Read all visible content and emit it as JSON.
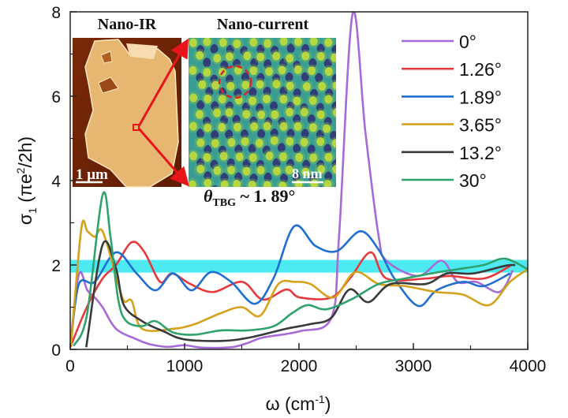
{
  "chart_data": {
    "type": "line",
    "xlabel": {
      "main": "ω (cm",
      "sup": "-1",
      "end": ")"
    },
    "ylabel": {
      "main": "σ",
      "sub": "1",
      "mid": " (πe",
      "sup": "2",
      "end": "/2h)"
    },
    "xlim": [
      0,
      4000
    ],
    "ylim": [
      0,
      8
    ],
    "xticks": [
      0,
      1000,
      2000,
      3000,
      4000
    ],
    "yticks": [
      0,
      2,
      4,
      6,
      8
    ],
    "grid": false,
    "legend_placement": "top-right",
    "reference_band": {
      "y_range": [
        1.82,
        2.12
      ],
      "color": "#2ee6ee"
    },
    "series": [
      {
        "name": "0°",
        "color": "#a66bd6",
        "points": [
          [
            0,
            0.1
          ],
          [
            76,
            1.78
          ],
          [
            150,
            1.4
          ],
          [
            214,
            1.23
          ],
          [
            283,
            1.0
          ],
          [
            400,
            0.49
          ],
          [
            580,
            0.24
          ],
          [
            700,
            0.12
          ],
          [
            855,
            0.06
          ],
          [
            1000,
            0.1
          ],
          [
            1150,
            0.04
          ],
          [
            1407,
            0.05
          ],
          [
            1550,
            0.15
          ],
          [
            1683,
            0.28
          ],
          [
            2007,
            0.43
          ],
          [
            2283,
            0.75
          ],
          [
            2350,
            2.67
          ],
          [
            2469,
            7.96
          ],
          [
            2580,
            5.16
          ],
          [
            2697,
            2.67
          ],
          [
            2766,
            2.1
          ],
          [
            3041,
            1.74
          ],
          [
            3248,
            2.1
          ],
          [
            3386,
            1.6
          ],
          [
            3550,
            1.6
          ],
          [
            3752,
            1.36
          ],
          [
            3869,
            1.87
          ]
        ]
      },
      {
        "name": "1.26°",
        "color": "#e5393d",
        "points": [
          [
            0,
            0.05
          ],
          [
            145,
            1.0
          ],
          [
            283,
            1.68
          ],
          [
            400,
            2.0
          ],
          [
            538,
            2.54
          ],
          [
            650,
            2.3
          ],
          [
            786,
            1.6
          ],
          [
            890,
            1.8
          ],
          [
            1050,
            1.55
          ],
          [
            1248,
            1.36
          ],
          [
            1503,
            1.6
          ],
          [
            1683,
            1.18
          ],
          [
            1890,
            1.42
          ],
          [
            2007,
            1.23
          ],
          [
            2283,
            1.23
          ],
          [
            2450,
            1.7
          ],
          [
            2628,
            2.3
          ],
          [
            2766,
            1.68
          ],
          [
            3110,
            1.68
          ],
          [
            3317,
            1.74
          ],
          [
            3615,
            1.68
          ],
          [
            3848,
            1.98
          ]
        ]
      },
      {
        "name": "1.89°",
        "color": "#1f6fd1",
        "points": [
          [
            7,
            0.18
          ],
          [
            76,
            1.55
          ],
          [
            214,
            1.6
          ],
          [
            400,
            2.3
          ],
          [
            580,
            1.8
          ],
          [
            745,
            1.4
          ],
          [
            900,
            1.8
          ],
          [
            1062,
            1.4
          ],
          [
            1228,
            1.83
          ],
          [
            1407,
            1.6
          ],
          [
            1614,
            1.08
          ],
          [
            1780,
            1.7
          ],
          [
            1959,
            2.92
          ],
          [
            2145,
            2.45
          ],
          [
            2331,
            2.33
          ],
          [
            2538,
            2.8
          ],
          [
            2697,
            2.36
          ],
          [
            2834,
            1.68
          ],
          [
            3041,
            1.03
          ],
          [
            3203,
            1.4
          ],
          [
            3432,
            1.6
          ],
          [
            3615,
            1.5
          ],
          [
            3845,
            1.8
          ]
        ]
      },
      {
        "name": "3.65°",
        "color": "#d4a21a",
        "points": [
          [
            7,
            0.1
          ],
          [
            97,
            2.86
          ],
          [
            150,
            2.8
          ],
          [
            214,
            2.67
          ],
          [
            283,
            2.8
          ],
          [
            400,
            1.74
          ],
          [
            469,
            1.15
          ],
          [
            538,
            1.15
          ],
          [
            628,
            0.49
          ],
          [
            903,
            0.49
          ],
          [
            1090,
            0.6
          ],
          [
            1317,
            0.86
          ],
          [
            1500,
            1.0
          ],
          [
            1662,
            0.8
          ],
          [
            1820,
            1.55
          ],
          [
            1959,
            1.6
          ],
          [
            2100,
            1.55
          ],
          [
            2303,
            1.23
          ],
          [
            2490,
            1.83
          ],
          [
            2697,
            1.55
          ],
          [
            2926,
            1.5
          ],
          [
            3200,
            1.36
          ],
          [
            3432,
            1.3
          ],
          [
            3662,
            1.05
          ],
          [
            3845,
            1.6
          ],
          [
            4000,
            1.9
          ]
        ]
      },
      {
        "name": "13.2°",
        "color": "#3a3a3a",
        "points": [
          [
            140,
            0.05
          ],
          [
            283,
            2.48
          ],
          [
            400,
            1.92
          ],
          [
            469,
            1.05
          ],
          [
            628,
            0.67
          ],
          [
            814,
            0.43
          ],
          [
            993,
            0.24
          ],
          [
            1317,
            0.2
          ],
          [
            1568,
            0.28
          ],
          [
            1890,
            0.49
          ],
          [
            2100,
            0.6
          ],
          [
            2283,
            0.75
          ],
          [
            2441,
            1.42
          ],
          [
            2607,
            1.12
          ],
          [
            2800,
            1.55
          ],
          [
            3110,
            1.55
          ],
          [
            3294,
            1.8
          ],
          [
            3524,
            1.8
          ],
          [
            3800,
            1.98
          ],
          [
            3890,
            2.0
          ]
        ]
      },
      {
        "name": "30°",
        "color": "#2ea36b",
        "points": [
          [
            30,
            0.08
          ],
          [
            145,
            0.8
          ],
          [
            283,
            3.66
          ],
          [
            352,
            2.67
          ],
          [
            420,
            1.18
          ],
          [
            490,
            0.67
          ],
          [
            628,
            0.55
          ],
          [
            745,
            0.67
          ],
          [
            900,
            0.4
          ],
          [
            1090,
            0.35
          ],
          [
            1317,
            0.45
          ],
          [
            1550,
            0.45
          ],
          [
            1780,
            0.55
          ],
          [
            1940,
            0.86
          ],
          [
            2076,
            1.05
          ],
          [
            2238,
            0.95
          ],
          [
            2469,
            1.2
          ],
          [
            2697,
            1.55
          ],
          [
            2926,
            1.68
          ],
          [
            3156,
            1.8
          ],
          [
            3386,
            1.9
          ],
          [
            3615,
            2.0
          ],
          [
            3800,
            2.15
          ],
          [
            4000,
            1.9
          ]
        ]
      }
    ],
    "insets": {
      "left_title": "Nano-IR",
      "left_scalebar": "1 μm",
      "right_title": "Nano-current",
      "right_scalebar": "8 nm",
      "annotation": {
        "theta": "θ",
        "sub": "TBG",
        "rest": " ~ 1. 89°"
      }
    }
  }
}
